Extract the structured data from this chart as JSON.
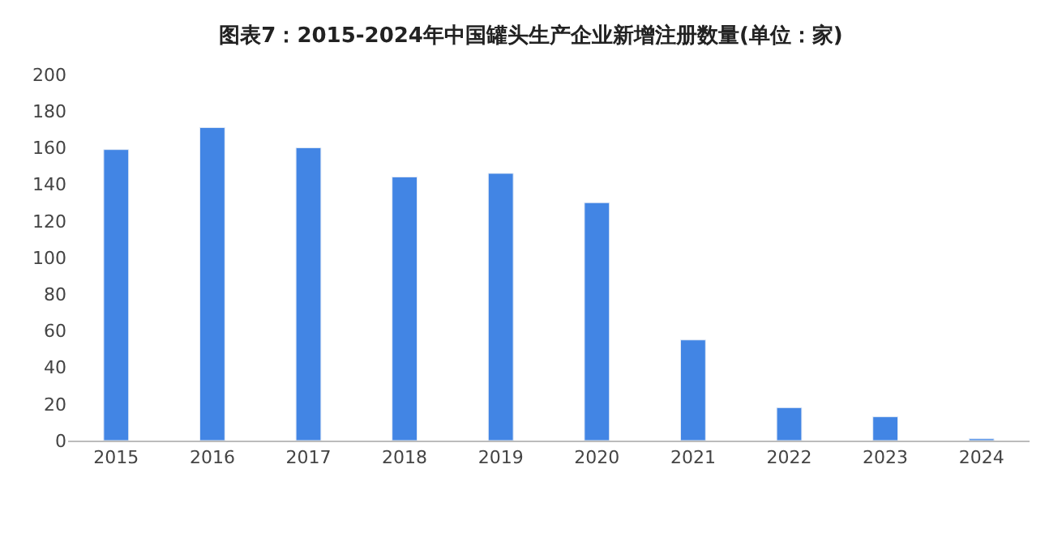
{
  "chart_data": {
    "type": "bar",
    "title": "图表7：2015-2024年中国罐头生产企业新增注册数量(单位：家)",
    "categories": [
      "2015",
      "2016",
      "2017",
      "2018",
      "2019",
      "2020",
      "2021",
      "2022",
      "2023",
      "2024"
    ],
    "values": [
      159,
      171,
      160,
      144,
      146,
      130,
      55,
      18,
      13,
      1
    ],
    "color": "#4285e4",
    "ylim": [
      0,
      200
    ],
    "yticks": [
      0,
      20,
      40,
      60,
      80,
      100,
      120,
      140,
      160,
      180,
      200
    ],
    "grid": false
  }
}
